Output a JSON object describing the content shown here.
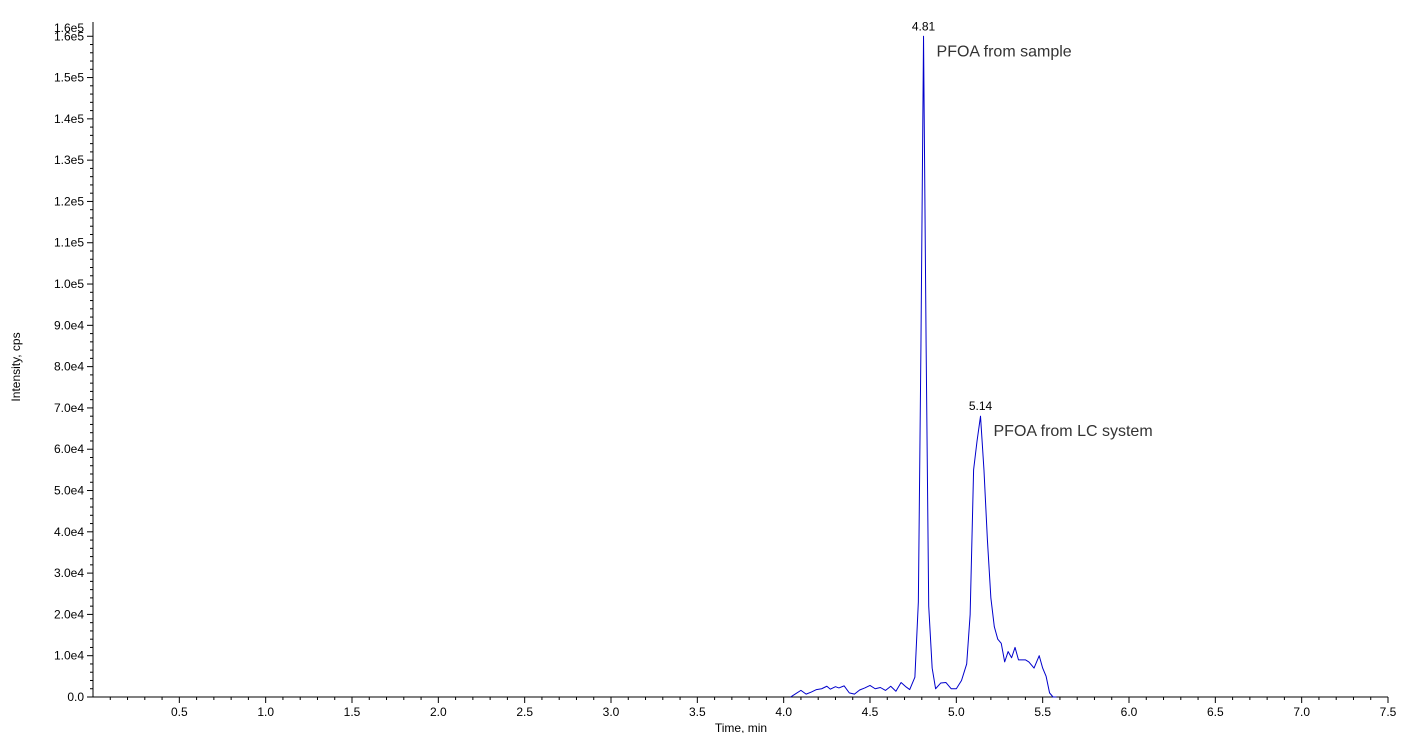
{
  "chart_data": {
    "type": "line",
    "title": "",
    "xlabel": "Time, min",
    "ylabel": "Intensity, cps",
    "xlim": [
      0,
      7.5
    ],
    "ylim": [
      0,
      162000
    ],
    "grid": false,
    "legend": "none",
    "line_color": "#0000cc",
    "x_ticks": [
      0.5,
      1.0,
      1.5,
      2.0,
      2.5,
      3.0,
      3.5,
      4.0,
      4.5,
      5.0,
      5.5,
      6.0,
      6.5,
      7.0,
      7.5
    ],
    "x_tick_labels": [
      "0.5",
      "1.0",
      "1.5",
      "2.0",
      "2.5",
      "3.0",
      "3.5",
      "4.0",
      "4.5",
      "5.0",
      "5.5",
      "6.0",
      "6.5",
      "7.0",
      "7.5"
    ],
    "y_ticks": [
      0,
      10000,
      20000,
      30000,
      40000,
      50000,
      60000,
      70000,
      80000,
      90000,
      100000,
      110000,
      120000,
      130000,
      140000,
      150000,
      160000,
      162000
    ],
    "y_tick_labels": [
      "0.0",
      "1.0e4",
      "2.0e4",
      "3.0e4",
      "4.0e4",
      "5.0e4",
      "6.0e4",
      "7.0e4",
      "8.0e4",
      "9.0e4",
      "1.0e5",
      "1.1e5",
      "1.2e5",
      "1.3e5",
      "1.4e5",
      "1.5e5",
      "1.6e5",
      "1.6e5"
    ],
    "series": [
      {
        "x": [
          4.04,
          4.07,
          4.1,
          4.13,
          4.16,
          4.19,
          4.22,
          4.25,
          4.27,
          4.3,
          4.32,
          4.35,
          4.38,
          4.41,
          4.44,
          4.47,
          4.5,
          4.53,
          4.56,
          4.59,
          4.62,
          4.65,
          4.68,
          4.71,
          4.73,
          4.76,
          4.78,
          4.795,
          4.81,
          4.825,
          4.84,
          4.86,
          4.88,
          4.91,
          4.94,
          4.97,
          5.0,
          5.03,
          5.06,
          5.08,
          5.1,
          5.12,
          5.14,
          5.16,
          5.18,
          5.2,
          5.22,
          5.24,
          5.26,
          5.28,
          5.3,
          5.32,
          5.34,
          5.36,
          5.38,
          5.4,
          5.42,
          5.45,
          5.48,
          5.5,
          5.52,
          5.54,
          5.56,
          5.58
        ],
        "values": [
          0,
          800,
          1600,
          700,
          1200,
          1800,
          2000,
          2600,
          1900,
          2500,
          2200,
          2700,
          1000,
          700,
          1700,
          2200,
          2800,
          2000,
          2300,
          1600,
          2600,
          1400,
          3500,
          2400,
          1800,
          4800,
          23000,
          85000,
          160000,
          85000,
          22000,
          7000,
          2000,
          3400,
          3500,
          2000,
          2000,
          4000,
          8000,
          20000,
          55000,
          62000,
          68000,
          55000,
          38000,
          24000,
          17000,
          14000,
          13000,
          8500,
          11000,
          9500,
          12000,
          9000,
          9000,
          9000,
          8500,
          7000,
          10000,
          7000,
          5000,
          1000,
          0,
          0
        ]
      }
    ],
    "annotations": [
      {
        "x": 4.81,
        "y": 160000,
        "label": "4.81",
        "text": "PFOA from sample"
      },
      {
        "x": 5.14,
        "y": 68000,
        "label": "5.14",
        "text": "PFOA from LC system"
      }
    ]
  }
}
